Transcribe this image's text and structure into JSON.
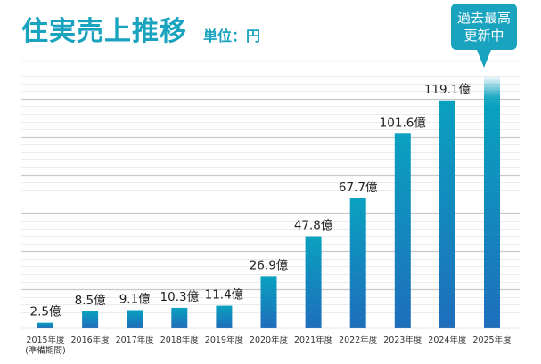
{
  "header": {
    "title": "住実売上推移",
    "unit": "単位：円"
  },
  "callout": {
    "line1": "過去最高",
    "line2": "更新中"
  },
  "colors": {
    "accent": "#1aa3bf",
    "bar_top": "#0aa1c0",
    "bar_bottom": "#1e6ebb",
    "grid_major": "#c8c8c8",
    "grid_minor": "#ececec",
    "axis": "#9a9a9a"
  },
  "chart_data": {
    "type": "bar",
    "title": "住実売上推移",
    "subtitle": "単位：円",
    "xlabel": "",
    "ylabel": "",
    "ylim": [
      0,
      140
    ],
    "grid": true,
    "grid_major_step": 20,
    "grid_minor_step": 4,
    "legend": "none",
    "categories": [
      "2015年度",
      "2016年度",
      "2017年度",
      "2018年度",
      "2019年度",
      "2020年度",
      "2021年度",
      "2022年度",
      "2023年度",
      "2024年度",
      "2025年度"
    ],
    "category_sublabels": [
      "(準備期間)",
      "",
      "",
      "",
      "",
      "",
      "",
      "",
      "",
      "",
      ""
    ],
    "values": [
      2.5,
      8.5,
      9.1,
      10.3,
      11.4,
      26.9,
      47.8,
      67.7,
      101.6,
      119.1,
      131
    ],
    "value_labels": [
      "2.5億",
      "8.5億",
      "9.1億",
      "10.3億",
      "11.4億",
      "26.9億",
      "47.8億",
      "67.7億",
      "101.6億",
      "119.1億",
      ""
    ],
    "value_unit": "億",
    "annotations": [
      {
        "category": "2025年度",
        "text": "過去最高 更新中",
        "style": "callout",
        "note": "bar fades out at top, value in progress"
      }
    ]
  }
}
